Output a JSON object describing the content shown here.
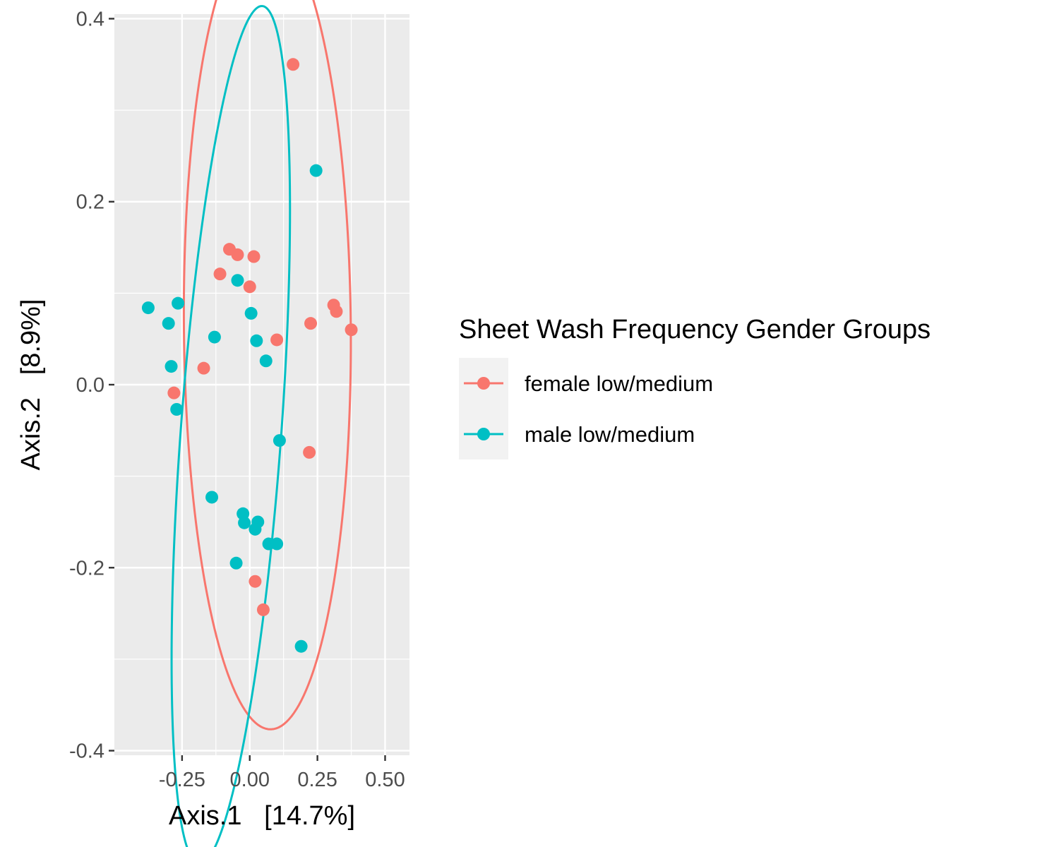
{
  "chart_data": {
    "type": "scatter",
    "title": "",
    "xlabel": "Axis.1   [14.7%]",
    "ylabel": "Axis.2   [8.9%]",
    "xlim": [
      -0.5,
      0.59
    ],
    "ylim": [
      -0.405,
      0.405
    ],
    "x_ticks": [
      -0.25,
      0.0,
      0.25,
      0.5
    ],
    "x_tick_labels": [
      "-0.25",
      "0.00",
      "0.25",
      "0.50"
    ],
    "y_ticks": [
      0.4,
      0.2,
      0.0,
      -0.2,
      -0.4
    ],
    "y_tick_labels": [
      "0.4",
      "0.2",
      "0.0",
      "-0.2",
      "-0.4"
    ],
    "grid": true,
    "legend": {
      "title": "Sheet Wash Frequency Gender Groups",
      "position": "right"
    },
    "series": [
      {
        "name": "female low/medium",
        "color": "#F8766D",
        "points": [
          [
            0.16,
            0.35
          ],
          [
            -0.075,
            0.148
          ],
          [
            -0.045,
            0.142
          ],
          [
            0.015,
            0.14
          ],
          [
            -0.11,
            0.121
          ],
          [
            0.0,
            0.107
          ],
          [
            0.31,
            0.087
          ],
          [
            0.32,
            0.08
          ],
          [
            0.225,
            0.067
          ],
          [
            0.375,
            0.06
          ],
          [
            0.1,
            0.049
          ],
          [
            -0.17,
            0.018
          ],
          [
            -0.28,
            -0.009
          ],
          [
            0.22,
            -0.074
          ],
          [
            0.02,
            -0.215
          ],
          [
            0.05,
            -0.246
          ]
        ],
        "ellipse": {
          "cx": 0.065,
          "cy": 0.063,
          "rx": 0.44,
          "ry": 0.308,
          "angle_deg": 93
        }
      },
      {
        "name": "male low/medium",
        "color": "#00BFC4",
        "points": [
          [
            0.245,
            0.234
          ],
          [
            -0.045,
            0.114
          ],
          [
            -0.375,
            0.084
          ],
          [
            -0.265,
            0.089
          ],
          [
            -0.3,
            0.067
          ],
          [
            0.005,
            0.078
          ],
          [
            -0.13,
            0.052
          ],
          [
            0.025,
            0.048
          ],
          [
            0.06,
            0.026
          ],
          [
            -0.29,
            0.02
          ],
          [
            -0.27,
            -0.027
          ],
          [
            0.11,
            -0.061
          ],
          [
            -0.14,
            -0.123
          ],
          [
            -0.025,
            -0.141
          ],
          [
            -0.02,
            -0.151
          ],
          [
            0.03,
            -0.15
          ],
          [
            0.02,
            -0.158
          ],
          [
            0.07,
            -0.174
          ],
          [
            0.1,
            -0.174
          ],
          [
            -0.05,
            -0.195
          ],
          [
            0.19,
            -0.286
          ]
        ],
        "ellipse": {
          "cx": -0.07,
          "cy": -0.055,
          "rx": 0.485,
          "ry": 0.18,
          "angle_deg": 74
        }
      }
    ]
  }
}
